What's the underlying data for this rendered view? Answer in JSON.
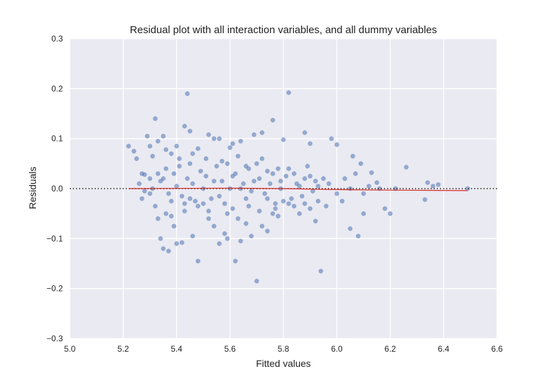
{
  "chart_data": {
    "type": "scatter",
    "title": "Residual plot with all interaction variables, and all dummy variables",
    "xlabel": "Fitted values",
    "ylabel": "Residuals",
    "xlim": [
      5.0,
      6.6
    ],
    "ylim": [
      -0.3,
      0.3
    ],
    "xticks": [
      "5.0",
      "5.2",
      "5.4",
      "5.6",
      "5.8",
      "6.0",
      "6.2",
      "6.4",
      "6.6"
    ],
    "yticks": [
      "0.3",
      "0.2",
      "0.1",
      "0.0",
      "−0.1",
      "−0.2",
      "−0.3"
    ],
    "grid": true,
    "reference_line": {
      "y": 0.0,
      "style": "dotted"
    },
    "trend_line": {
      "x": [
        5.22,
        5.6,
        5.8,
        6.0,
        6.2,
        6.49
      ],
      "y": [
        0.0,
        0.001,
        0.0,
        -0.002,
        -0.003,
        -0.004
      ]
    },
    "point_color": "#4c72b0",
    "trend_color": "#d62728",
    "background_color": "#eaeaf2",
    "points": [
      [
        5.22,
        0.085
      ],
      [
        5.24,
        0.075
      ],
      [
        5.25,
        0.06
      ],
      [
        5.27,
        0.03
      ],
      [
        5.28,
        0.028
      ],
      [
        5.29,
        0.105
      ],
      [
        5.3,
        0.085
      ],
      [
        5.31,
        0.065
      ],
      [
        5.32,
        0.14
      ],
      [
        5.33,
        0.095
      ],
      [
        5.35,
        0.105
      ],
      [
        5.36,
        0.078
      ],
      [
        5.38,
        0.07
      ],
      [
        5.4,
        0.085
      ],
      [
        5.43,
        0.125
      ],
      [
        5.44,
        0.19
      ],
      [
        5.45,
        0.115
      ],
      [
        5.48,
        0.08
      ],
      [
        5.52,
        0.108
      ],
      [
        5.54,
        0.1
      ],
      [
        5.56,
        0.1
      ],
      [
        5.6,
        0.082
      ],
      [
        5.61,
        0.09
      ],
      [
        5.64,
        0.095
      ],
      [
        5.69,
        0.108
      ],
      [
        5.72,
        0.112
      ],
      [
        5.76,
        0.137
      ],
      [
        5.8,
        0.098
      ],
      [
        5.82,
        0.192
      ],
      [
        5.88,
        0.112
      ],
      [
        5.9,
        0.09
      ],
      [
        5.98,
        0.1
      ],
      [
        6.0,
        0.088
      ],
      [
        6.06,
        0.065
      ],
      [
        6.09,
        0.05
      ],
      [
        6.13,
        0.032
      ],
      [
        6.15,
        0.012
      ],
      [
        6.26,
        0.043
      ],
      [
        6.34,
        0.012
      ],
      [
        6.38,
        0.008
      ],
      [
        6.49,
        0.0
      ],
      [
        5.27,
        -0.02
      ],
      [
        5.3,
        -0.01
      ],
      [
        5.32,
        -0.035
      ],
      [
        5.33,
        -0.06
      ],
      [
        5.34,
        -0.1
      ],
      [
        5.35,
        -0.12
      ],
      [
        5.36,
        -0.05
      ],
      [
        5.37,
        -0.125
      ],
      [
        5.38,
        -0.055
      ],
      [
        5.39,
        -0.075
      ],
      [
        5.4,
        -0.11
      ],
      [
        5.42,
        -0.108
      ],
      [
        5.43,
        -0.03
      ],
      [
        5.45,
        -0.02
      ],
      [
        5.46,
        -0.095
      ],
      [
        5.48,
        -0.145
      ],
      [
        5.5,
        -0.03
      ],
      [
        5.52,
        -0.06
      ],
      [
        5.54,
        -0.075
      ],
      [
        5.56,
        -0.11
      ],
      [
        5.58,
        -0.09
      ],
      [
        5.59,
        -0.1
      ],
      [
        5.62,
        -0.145
      ],
      [
        5.64,
        -0.105
      ],
      [
        5.66,
        -0.07
      ],
      [
        5.68,
        -0.095
      ],
      [
        5.7,
        -0.185
      ],
      [
        5.72,
        -0.075
      ],
      [
        5.74,
        -0.085
      ],
      [
        5.76,
        -0.05
      ],
      [
        5.78,
        -0.055
      ],
      [
        5.82,
        -0.03
      ],
      [
        5.86,
        -0.05
      ],
      [
        5.9,
        -0.04
      ],
      [
        5.92,
        -0.065
      ],
      [
        5.94,
        -0.165
      ],
      [
        5.96,
        -0.035
      ],
      [
        6.02,
        -0.025
      ],
      [
        6.05,
        -0.08
      ],
      [
        6.08,
        -0.095
      ],
      [
        6.1,
        -0.05
      ],
      [
        6.18,
        -0.04
      ],
      [
        6.2,
        -0.05
      ],
      [
        6.33,
        -0.022
      ],
      [
        5.26,
        0.01
      ],
      [
        5.28,
        -0.005
      ],
      [
        5.3,
        0.02
      ],
      [
        5.31,
        0.0
      ],
      [
        5.34,
        0.015
      ],
      [
        5.36,
        0.04
      ],
      [
        5.37,
        -0.01
      ],
      [
        5.39,
        0.03
      ],
      [
        5.4,
        0.005
      ],
      [
        5.41,
        0.045
      ],
      [
        5.42,
        -0.015
      ],
      [
        5.44,
        0.02
      ],
      [
        5.45,
        0.05
      ],
      [
        5.46,
        0.01
      ],
      [
        5.47,
        -0.025
      ],
      [
        5.49,
        0.035
      ],
      [
        5.5,
        0.0
      ],
      [
        5.51,
        0.06
      ],
      [
        5.53,
        -0.02
      ],
      [
        5.55,
        0.045
      ],
      [
        5.57,
        0.015
      ],
      [
        5.58,
        -0.03
      ],
      [
        5.59,
        0.05
      ],
      [
        5.6,
        0.0
      ],
      [
        5.61,
        -0.04
      ],
      [
        5.62,
        0.03
      ],
      [
        5.63,
        0.065
      ],
      [
        5.65,
        0.01
      ],
      [
        5.66,
        -0.02
      ],
      [
        5.67,
        0.04
      ],
      [
        5.68,
        -0.005
      ],
      [
        5.7,
        0.05
      ],
      [
        5.71,
        0.02
      ],
      [
        5.73,
        -0.01
      ],
      [
        5.74,
        0.035
      ],
      [
        5.75,
        0.01
      ],
      [
        5.77,
        -0.03
      ],
      [
        5.78,
        0.04
      ],
      [
        5.79,
        0.0
      ],
      [
        5.81,
        0.025
      ],
      [
        5.83,
        -0.02
      ],
      [
        5.84,
        0.03
      ],
      [
        5.85,
        0.01
      ],
      [
        5.87,
        -0.015
      ],
      [
        5.88,
        0.02
      ],
      [
        5.89,
        0.045
      ],
      [
        5.91,
        -0.005
      ],
      [
        5.92,
        0.015
      ],
      [
        5.93,
        -0.025
      ],
      [
        5.95,
        0.02
      ],
      [
        5.97,
        0.01
      ],
      [
        6.0,
        -0.01
      ],
      [
        6.03,
        0.02
      ],
      [
        6.05,
        0.0
      ],
      [
        6.07,
        0.03
      ],
      [
        6.1,
        -0.01
      ],
      [
        6.12,
        0.005
      ],
      [
        6.16,
        0.0
      ],
      [
        6.22,
        0.0
      ],
      [
        6.36,
        0.005
      ],
      [
        5.33,
        0.03
      ],
      [
        5.35,
        0.02
      ],
      [
        5.38,
        -0.025
      ],
      [
        5.41,
        0.06
      ],
      [
        5.43,
        -0.045
      ],
      [
        5.46,
        0.07
      ],
      [
        5.48,
        -0.035
      ],
      [
        5.51,
        0.025
      ],
      [
        5.52,
        -0.045
      ],
      [
        5.54,
        0.015
      ],
      [
        5.56,
        -0.015
      ],
      [
        5.57,
        0.055
      ],
      [
        5.59,
        -0.05
      ],
      [
        5.61,
        0.025
      ],
      [
        5.63,
        -0.06
      ],
      [
        5.64,
        0.0
      ],
      [
        5.66,
        0.045
      ],
      [
        5.67,
        -0.035
      ],
      [
        5.69,
        0.015
      ],
      [
        5.71,
        -0.045
      ],
      [
        5.72,
        0.06
      ],
      [
        5.74,
        -0.02
      ],
      [
        5.76,
        0.03
      ],
      [
        5.77,
        -0.04
      ],
      [
        5.79,
        0.015
      ],
      [
        5.8,
        -0.025
      ],
      [
        5.82,
        0.04
      ],
      [
        5.84,
        -0.035
      ],
      [
        5.86,
        0.005
      ],
      [
        5.88,
        -0.03
      ],
      [
        5.9,
        0.025
      ],
      [
        5.93,
        0.005
      ]
    ]
  }
}
